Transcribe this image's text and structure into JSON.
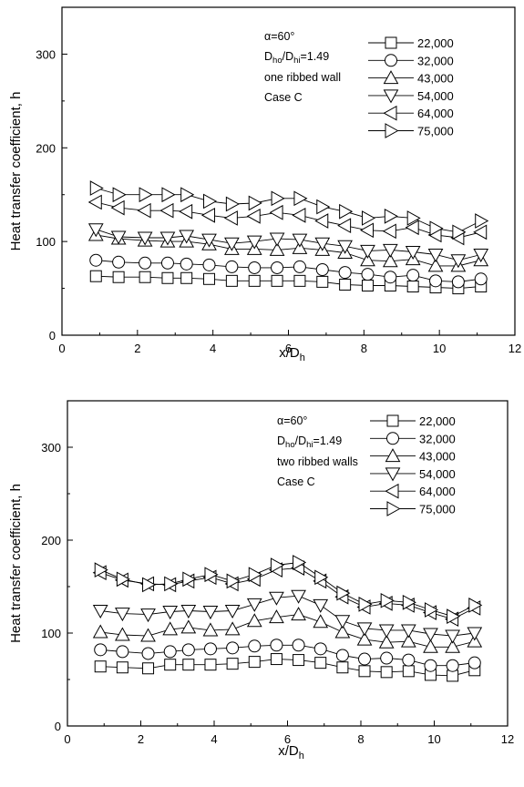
{
  "chart_data": [
    {
      "type": "line",
      "xlabel_main": "x/D",
      "xlabel_sub": "h",
      "ylabel": "Heat transfer coefficient, h",
      "xlim": [
        0,
        12
      ],
      "ylim": [
        0,
        350
      ],
      "xticks": [
        "0",
        "2",
        "4",
        "6",
        "8",
        "10",
        "12"
      ],
      "yticks": [
        "0",
        "100",
        "200",
        "300"
      ],
      "xtick_values": [
        0,
        2,
        4,
        6,
        8,
        10,
        12
      ],
      "ytick_values": [
        0,
        100,
        200,
        300
      ],
      "grid": false,
      "legend_position": "top-right",
      "annotations": {
        "alpha": "α=60°",
        "ratio_D1": "D",
        "ratio_sub1": "ho",
        "ratio_slash": "/D",
        "ratio_sub2": "hi",
        "ratio_value": "=1.49",
        "line3": "one ribbed wall",
        "line4": "Case C"
      },
      "x": [
        0.9,
        1.5,
        2.2,
        2.8,
        3.3,
        3.9,
        4.5,
        5.1,
        5.7,
        6.3,
        6.9,
        7.5,
        8.1,
        8.7,
        9.3,
        9.9,
        10.5,
        11.1
      ],
      "series": [
        {
          "name": "22,000",
          "marker": "square",
          "values": [
            63,
            62,
            62,
            61,
            61,
            60,
            58,
            58,
            58,
            58,
            57,
            54,
            53,
            53,
            52,
            51,
            50,
            52
          ]
        },
        {
          "name": "32,000",
          "marker": "circle",
          "values": [
            80,
            78,
            77,
            77,
            76,
            75,
            73,
            72,
            72,
            73,
            70,
            67,
            65,
            62,
            64,
            58,
            57,
            60
          ]
        },
        {
          "name": "43,000",
          "marker": "triangle-up",
          "values": [
            107,
            103,
            101,
            100,
            100,
            97,
            92,
            92,
            91,
            93,
            91,
            88,
            80,
            79,
            81,
            74,
            74,
            80
          ]
        },
        {
          "name": "54,000",
          "marker": "triangle-down",
          "values": [
            113,
            105,
            104,
            104,
            106,
            102,
            98,
            100,
            103,
            102,
            98,
            95,
            90,
            91,
            89,
            86,
            80,
            86
          ]
        },
        {
          "name": "64,000",
          "marker": "triangle-left",
          "values": [
            142,
            136,
            133,
            133,
            132,
            128,
            125,
            127,
            131,
            128,
            122,
            117,
            112,
            111,
            115,
            107,
            104,
            110
          ]
        },
        {
          "name": "75,000",
          "marker": "triangle-right",
          "values": [
            157,
            150,
            150,
            150,
            150,
            143,
            140,
            141,
            146,
            146,
            137,
            132,
            125,
            127,
            125,
            114,
            110,
            122
          ]
        }
      ]
    },
    {
      "type": "line",
      "xlabel_main": "x/D",
      "xlabel_sub": "h",
      "ylabel": "Heat transfer coefficient, h",
      "xlim": [
        0,
        12
      ],
      "ylim": [
        0,
        350
      ],
      "xticks": [
        "0",
        "2",
        "4",
        "6",
        "8",
        "10",
        "12"
      ],
      "yticks": [
        "0",
        "100",
        "200",
        "300"
      ],
      "xtick_values": [
        0,
        2,
        4,
        6,
        8,
        10,
        12
      ],
      "ytick_values": [
        0,
        100,
        200,
        300
      ],
      "grid": false,
      "legend_position": "top-right",
      "annotations": {
        "alpha": "α=60°",
        "ratio_D1": "D",
        "ratio_sub1": "ho",
        "ratio_slash": "/D",
        "ratio_sub2": "hi",
        "ratio_value": "=1.49",
        "line3": "two ribbed walls",
        "line4": "Case C"
      },
      "x": [
        0.9,
        1.5,
        2.2,
        2.8,
        3.3,
        3.9,
        4.5,
        5.1,
        5.7,
        6.3,
        6.9,
        7.5,
        8.1,
        8.7,
        9.3,
        9.9,
        10.5,
        11.1
      ],
      "series": [
        {
          "name": "22,000",
          "marker": "square",
          "values": [
            64,
            63,
            62,
            66,
            66,
            66,
            67,
            69,
            72,
            71,
            68,
            63,
            59,
            58,
            59,
            55,
            54,
            60
          ]
        },
        {
          "name": "32,000",
          "marker": "circle",
          "values": [
            82,
            80,
            78,
            80,
            82,
            83,
            84,
            86,
            87,
            87,
            83,
            76,
            72,
            73,
            71,
            65,
            65,
            68
          ]
        },
        {
          "name": "43,000",
          "marker": "triangle-up",
          "values": [
            101,
            98,
            97,
            104,
            106,
            103,
            104,
            113,
            117,
            120,
            112,
            101,
            93,
            90,
            91,
            85,
            85,
            91
          ]
        },
        {
          "name": "54,000",
          "marker": "triangle-down",
          "values": [
            124,
            121,
            120,
            123,
            124,
            123,
            124,
            131,
            138,
            140,
            130,
            113,
            105,
            103,
            103,
            99,
            97,
            100
          ]
        },
        {
          "name": "64,000",
          "marker": "triangle-left",
          "values": [
            165,
            157,
            153,
            152,
            156,
            160,
            153,
            158,
            168,
            170,
            156,
            139,
            128,
            132,
            130,
            122,
            115,
            127
          ]
        },
        {
          "name": "75,000",
          "marker": "triangle-right",
          "values": [
            168,
            158,
            152,
            153,
            158,
            163,
            156,
            163,
            173,
            176,
            160,
            143,
            131,
            135,
            133,
            125,
            118,
            130
          ]
        }
      ]
    }
  ]
}
